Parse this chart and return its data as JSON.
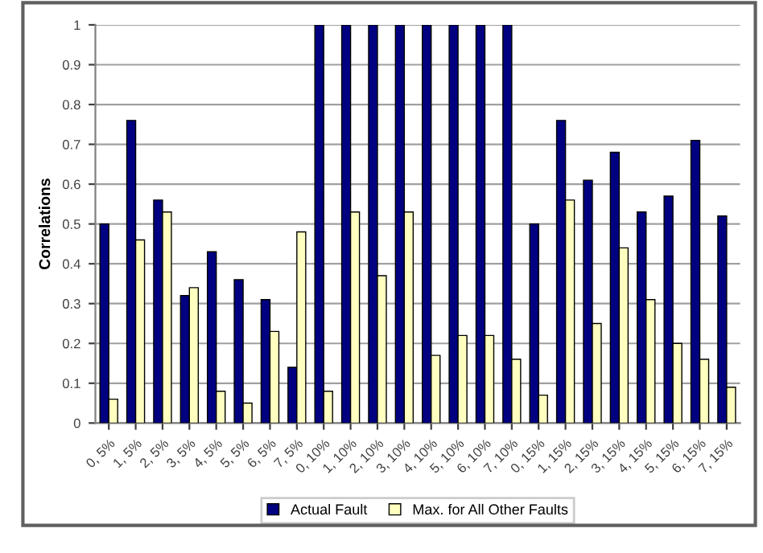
{
  "chart_data": {
    "type": "bar",
    "ylabel": "Correlations",
    "categories": [
      "0, 5%",
      "1, 5%",
      "2, 5%",
      "3, 5%",
      "4, 5%",
      "5, 5%",
      "6, 5%",
      "7, 5%",
      "0, 10%",
      "1, 10%",
      "2, 10%",
      "3, 10%",
      "4, 10%",
      "5, 10%",
      "6, 10%",
      "7, 10%",
      "0, 15%",
      "1, 15%",
      "2, 15%",
      "3, 15%",
      "4, 15%",
      "5, 15%",
      "6, 15%",
      "7, 15%"
    ],
    "series": [
      {
        "name": "Actual Fault",
        "color": "#000080",
        "values": [
          0.5,
          0.76,
          0.56,
          0.32,
          0.43,
          0.36,
          0.31,
          0.14,
          1,
          1,
          1,
          1,
          1,
          1,
          1,
          1,
          0.5,
          0.76,
          0.61,
          0.68,
          0.53,
          0.57,
          0.71,
          0.52
        ]
      },
      {
        "name": "Max. for All Other Faults",
        "color": "#ffffc0",
        "values": [
          0.06,
          0.46,
          0.53,
          0.34,
          0.08,
          0.05,
          0.23,
          0.48,
          0.08,
          0.53,
          0.37,
          0.53,
          0.17,
          0.22,
          0.22,
          0.16,
          0.07,
          0.56,
          0.25,
          0.44,
          0.31,
          0.2,
          0.16,
          0.09
        ]
      }
    ],
    "ylim": [
      0,
      1
    ],
    "yticks": [
      0,
      0.1,
      0.2,
      0.3,
      0.4,
      0.5,
      0.6,
      0.7,
      0.8,
      0.9,
      1
    ],
    "grid": "y",
    "legend": "bottom"
  }
}
